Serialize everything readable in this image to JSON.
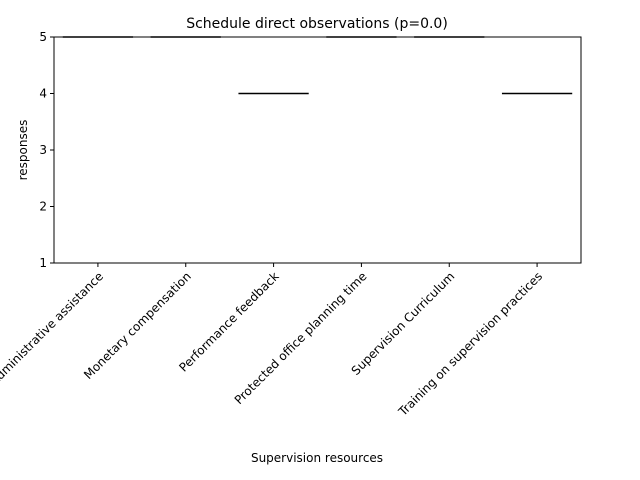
{
  "chart_data": {
    "type": "box",
    "title": "Schedule direct observations (p=0.0)",
    "xlabel": "Supervision resources",
    "ylabel": "responses",
    "ylim": [
      1,
      5
    ],
    "yticks": [
      1,
      2,
      3,
      4,
      5
    ],
    "grid": false,
    "categories": [
      "Administrative assistance",
      "Monetary compensation",
      "Performance feedback",
      "Protected office planning time",
      "Supervision Curriculum",
      "Training on supervision practices"
    ],
    "values": [
      5,
      5,
      4,
      5,
      5,
      4
    ]
  }
}
